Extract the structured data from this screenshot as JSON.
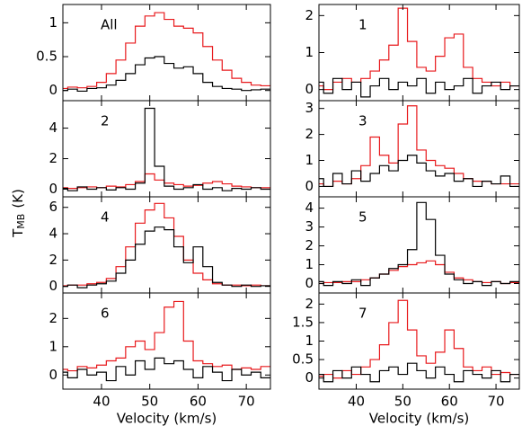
{
  "chart_data": [
    {
      "type": "step",
      "label": "All",
      "column": "left",
      "x": [
        32,
        34,
        36,
        38,
        40,
        42,
        44,
        46,
        48,
        50,
        52,
        54,
        56,
        58,
        60,
        62,
        64,
        66,
        68,
        70,
        72,
        74
      ],
      "xlim": [
        32,
        75
      ],
      "xticks": [
        40,
        50,
        60,
        70
      ],
      "ylim": [
        -0.15,
        1.27
      ],
      "yticks": [
        0,
        0.5,
        1
      ],
      "ylabel": {
        "main": "T",
        "sub": "MB",
        "unit": "(K)"
      },
      "series": [
        {
          "color": "#e8191c",
          "values": [
            0.03,
            0.05,
            0.04,
            0.06,
            0.12,
            0.25,
            0.45,
            0.7,
            0.95,
            1.1,
            1.15,
            1.05,
            0.95,
            0.92,
            0.85,
            0.65,
            0.45,
            0.3,
            0.18,
            0.12,
            0.08,
            0.07
          ]
        },
        {
          "color": "#000000",
          "values": [
            0.0,
            0.02,
            -0.01,
            0.03,
            0.04,
            0.08,
            0.15,
            0.25,
            0.38,
            0.48,
            0.5,
            0.4,
            0.33,
            0.35,
            0.25,
            0.12,
            0.06,
            0.03,
            0.02,
            0.0,
            0.01,
            0.02
          ]
        }
      ]
    },
    {
      "type": "step",
      "label": "2",
      "column": "left",
      "x": [
        32,
        34,
        36,
        38,
        40,
        42,
        44,
        46,
        48,
        50,
        52,
        54,
        56,
        58,
        60,
        62,
        64,
        66,
        68,
        70,
        72,
        74
      ],
      "xlim": [
        32,
        75
      ],
      "xticks": [
        40,
        50,
        60,
        70
      ],
      "ylim": [
        -0.5,
        5.8
      ],
      "yticks": [
        0,
        2,
        4
      ],
      "series": [
        {
          "color": "#e8191c",
          "values": [
            0.1,
            0.05,
            0.1,
            0.15,
            0.1,
            0.2,
            0.15,
            0.3,
            0.5,
            1.0,
            0.6,
            0.4,
            0.3,
            0.2,
            0.25,
            0.4,
            0.5,
            0.35,
            0.2,
            0.15,
            0.1,
            0.1
          ]
        },
        {
          "color": "#000000",
          "values": [
            0.05,
            -0.1,
            0.15,
            0.0,
            0.1,
            -0.05,
            0.1,
            0.0,
            0.4,
            5.3,
            1.5,
            0.2,
            0.0,
            0.1,
            0.3,
            0.0,
            0.1,
            -0.1,
            0.05,
            0.0,
            0.1,
            0.0
          ]
        }
      ]
    },
    {
      "type": "step",
      "label": "4",
      "column": "left",
      "x": [
        32,
        34,
        36,
        38,
        40,
        42,
        44,
        46,
        48,
        50,
        52,
        54,
        56,
        58,
        60,
        62,
        64,
        66,
        68,
        70,
        72,
        74
      ],
      "xlim": [
        32,
        75
      ],
      "xticks": [
        40,
        50,
        60,
        70
      ],
      "ylim": [
        -0.5,
        6.8
      ],
      "yticks": [
        0,
        2,
        4,
        6
      ],
      "series": [
        {
          "color": "#e8191c",
          "values": [
            0.05,
            0.1,
            0.1,
            0.2,
            0.3,
            0.6,
            1.5,
            3.0,
            4.8,
            5.8,
            6.3,
            5.2,
            3.8,
            2.0,
            1.0,
            0.5,
            0.2,
            0.1,
            0.1,
            0.05,
            0.1,
            0.05
          ]
        },
        {
          "color": "#000000",
          "values": [
            0.0,
            0.1,
            -0.1,
            0.1,
            0.2,
            0.4,
            1.0,
            2.0,
            3.2,
            4.2,
            4.5,
            4.3,
            3.0,
            1.8,
            3.0,
            1.5,
            0.3,
            0.1,
            0.0,
            0.1,
            0.0,
            0.05
          ]
        }
      ]
    },
    {
      "type": "step",
      "label": "6",
      "column": "left",
      "x": [
        32,
        34,
        36,
        38,
        40,
        42,
        44,
        46,
        48,
        50,
        52,
        54,
        56,
        58,
        60,
        62,
        64,
        66,
        68,
        70,
        72,
        74
      ],
      "xlim": [
        32,
        75
      ],
      "xticks": [
        40,
        50,
        60,
        70
      ],
      "xtick_labels": true,
      "xlabel": "Velocity (km/s)",
      "ylim": [
        -0.5,
        2.9
      ],
      "yticks": [
        0,
        1,
        2
      ],
      "series": [
        {
          "color": "#e8191c",
          "values": [
            0.2,
            0.15,
            0.3,
            0.25,
            0.35,
            0.5,
            0.6,
            1.0,
            1.2,
            0.9,
            1.5,
            2.4,
            2.6,
            1.2,
            0.5,
            0.4,
            0.3,
            0.35,
            0.2,
            0.25,
            0.2,
            0.3
          ]
        },
        {
          "color": "#000000",
          "values": [
            0.1,
            -0.1,
            0.2,
            0.0,
            0.1,
            -0.2,
            0.3,
            0.0,
            0.5,
            0.2,
            0.6,
            0.4,
            0.5,
            0.2,
            -0.1,
            0.3,
            0.1,
            -0.2,
            0.2,
            0.0,
            0.1,
            -0.1
          ]
        }
      ]
    },
    {
      "type": "step",
      "label": "1",
      "column": "right",
      "x": [
        32,
        34,
        36,
        38,
        40,
        42,
        44,
        46,
        48,
        50,
        52,
        54,
        56,
        58,
        60,
        62,
        64,
        66,
        68,
        70,
        72,
        74
      ],
      "xlim": [
        32,
        75
      ],
      "xticks": [
        40,
        50,
        60,
        70
      ],
      "ylim": [
        -0.3,
        2.3
      ],
      "yticks": [
        0,
        1,
        2
      ],
      "series": [
        {
          "color": "#e8191c",
          "values": [
            0.1,
            0.0,
            0.2,
            0.3,
            0.2,
            0.3,
            0.5,
            0.8,
            1.2,
            2.2,
            1.3,
            0.6,
            0.5,
            0.9,
            1.4,
            1.5,
            0.6,
            0.3,
            0.2,
            0.1,
            0.2,
            0.1
          ]
        },
        {
          "color": "#000000",
          "values": [
            0.2,
            -0.1,
            0.3,
            0.0,
            0.2,
            -0.2,
            0.1,
            0.3,
            0.0,
            0.2,
            0.1,
            0.3,
            -0.1,
            0.2,
            0.0,
            0.1,
            0.3,
            -0.1,
            0.1,
            0.2,
            0.0,
            0.1
          ]
        }
      ]
    },
    {
      "type": "step",
      "label": "3",
      "column": "right",
      "x": [
        32,
        34,
        36,
        38,
        40,
        42,
        44,
        46,
        48,
        50,
        52,
        54,
        56,
        58,
        60,
        62,
        64,
        66,
        68,
        70,
        72,
        74
      ],
      "xlim": [
        32,
        75
      ],
      "xticks": [
        40,
        50,
        60,
        70
      ],
      "ylim": [
        -0.4,
        3.3
      ],
      "yticks": [
        0,
        1,
        2,
        3
      ],
      "series": [
        {
          "color": "#e8191c",
          "values": [
            0.1,
            0.0,
            0.2,
            0.1,
            0.3,
            0.8,
            1.9,
            1.2,
            0.9,
            2.4,
            3.1,
            1.4,
            1.0,
            0.8,
            0.7,
            0.5,
            0.3,
            0.2,
            0.2,
            0.1,
            0.1,
            0.1
          ]
        },
        {
          "color": "#000000",
          "values": [
            0.3,
            0.0,
            0.5,
            0.1,
            0.6,
            0.2,
            0.5,
            0.8,
            0.6,
            1.0,
            1.2,
            0.9,
            0.6,
            0.4,
            0.5,
            0.2,
            0.3,
            0.0,
            0.2,
            0.1,
            0.4,
            0.0
          ]
        }
      ]
    },
    {
      "type": "step",
      "label": "5",
      "column": "right",
      "x": [
        32,
        34,
        36,
        38,
        40,
        42,
        44,
        46,
        48,
        50,
        52,
        54,
        56,
        58,
        60,
        62,
        64,
        66,
        68,
        70,
        72,
        74
      ],
      "xlim": [
        32,
        75
      ],
      "xticks": [
        40,
        50,
        60,
        70
      ],
      "ylim": [
        -0.5,
        4.6
      ],
      "yticks": [
        0,
        1,
        2,
        3,
        4
      ],
      "series": [
        {
          "color": "#e8191c",
          "values": [
            0.0,
            0.05,
            0.05,
            0.1,
            0.1,
            0.2,
            0.3,
            0.5,
            0.7,
            0.9,
            1.0,
            1.1,
            1.2,
            1.0,
            0.6,
            0.3,
            0.2,
            0.1,
            0.05,
            0.1,
            0.0,
            0.05
          ]
        },
        {
          "color": "#000000",
          "values": [
            0.1,
            -0.1,
            0.1,
            0.0,
            0.2,
            -0.1,
            0.3,
            0.5,
            0.8,
            1.0,
            1.8,
            4.3,
            3.4,
            1.5,
            0.5,
            0.2,
            0.0,
            0.1,
            -0.1,
            0.1,
            0.0,
            0.1
          ]
        }
      ]
    },
    {
      "type": "step",
      "label": "7",
      "column": "right",
      "x": [
        32,
        34,
        36,
        38,
        40,
        42,
        44,
        46,
        48,
        50,
        52,
        54,
        56,
        58,
        60,
        62,
        64,
        66,
        68,
        70,
        72,
        74
      ],
      "xlim": [
        32,
        75
      ],
      "xticks": [
        40,
        50,
        60,
        70
      ],
      "xtick_labels": true,
      "xlabel": "Velocity (km/s)",
      "ylim": [
        -0.3,
        2.3
      ],
      "yticks": [
        0,
        0.5,
        1,
        1.5,
        2
      ],
      "series": [
        {
          "color": "#e8191c",
          "values": [
            0.05,
            0.1,
            0.0,
            0.2,
            0.1,
            0.3,
            0.5,
            0.9,
            1.5,
            2.1,
            1.3,
            0.6,
            0.4,
            0.7,
            1.3,
            0.8,
            0.3,
            0.2,
            0.3,
            0.1,
            0.15,
            0.1
          ]
        },
        {
          "color": "#000000",
          "values": [
            0.1,
            -0.1,
            0.2,
            0.0,
            0.3,
            0.1,
            -0.1,
            0.2,
            0.3,
            0.1,
            0.4,
            0.2,
            0.0,
            0.3,
            0.1,
            -0.1,
            0.2,
            0.1,
            0.0,
            0.2,
            -0.1,
            0.1
          ]
        }
      ]
    }
  ]
}
